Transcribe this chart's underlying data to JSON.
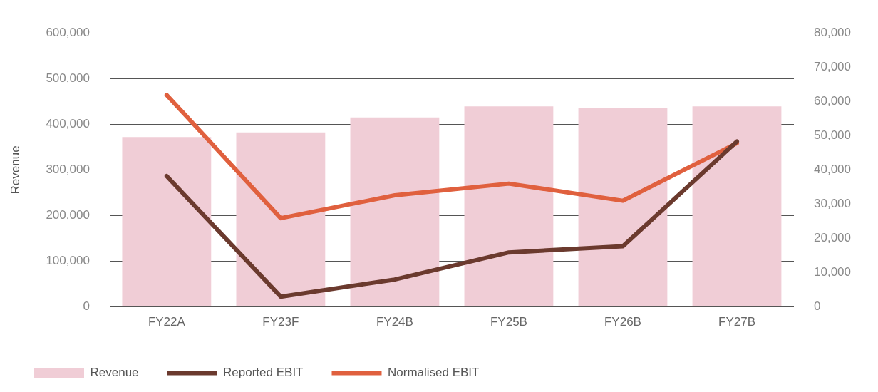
{
  "chart_data": {
    "type": "bar",
    "ylabel": "Revenue",
    "categories": [
      "FY22A",
      "FY23F",
      "FY24B",
      "FY25B",
      "FY26B",
      "FY27B"
    ],
    "series": [
      {
        "name": "Revenue",
        "color": "#f0cdd6",
        "values": [
          372000,
          382000,
          415000,
          439000,
          436000,
          439000
        ]
      },
      {
        "name": "Reported EBIT",
        "type": "line",
        "axis": "y2",
        "color": "#6b3a2e",
        "values": [
          38200,
          3000,
          8000,
          15900,
          17700,
          48300
        ]
      },
      {
        "name": "Normalised EBIT",
        "type": "line",
        "axis": "y2",
        "color": "#e0603e",
        "values": [
          61900,
          25900,
          32600,
          36000,
          31000,
          47800
        ]
      }
    ],
    "ylim": [
      0,
      600000
    ],
    "yticks": [
      {
        "value": 0,
        "label": "0"
      },
      {
        "value": 100000,
        "label": "100,000"
      },
      {
        "value": 200000,
        "label": "200,000"
      },
      {
        "value": 300000,
        "label": "300,000"
      },
      {
        "value": 400000,
        "label": "400,000"
      },
      {
        "value": 500000,
        "label": "500,000"
      },
      {
        "value": 600000,
        "label": "600,000"
      }
    ],
    "y2lim": [
      0,
      80000
    ],
    "y2ticks": [
      {
        "value": 0,
        "label": "0"
      },
      {
        "value": 10000,
        "label": "10,000"
      },
      {
        "value": 20000,
        "label": "20,000"
      },
      {
        "value": 30000,
        "label": "30,000"
      },
      {
        "value": 40000,
        "label": "40,000"
      },
      {
        "value": 50000,
        "label": "50,000"
      },
      {
        "value": 60000,
        "label": "60,000"
      },
      {
        "value": 70000,
        "label": "70,000"
      },
      {
        "value": 80000,
        "label": "80,000"
      }
    ],
    "grid": "y",
    "legend": "bottom",
    "marker": "none",
    "line_style": "solid"
  }
}
